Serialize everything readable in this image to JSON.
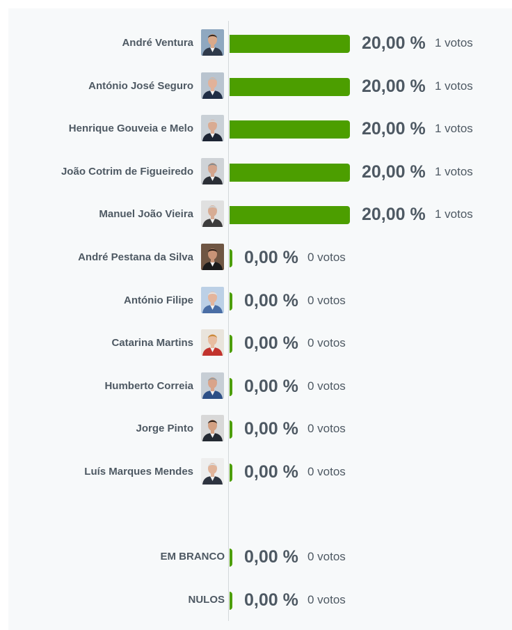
{
  "chart_data": {
    "type": "bar",
    "orientation": "horizontal",
    "vote_unit": "votos",
    "candidates": [
      {
        "name": "André Ventura",
        "percent_label": "20,00 %",
        "percent": 20.0,
        "votes": 1,
        "suit": "#2f3a4a",
        "hair": "#3a2b22",
        "skin": "#d9a98a",
        "bg": "#8fa8c0"
      },
      {
        "name": "António José Seguro",
        "percent_label": "20,00 %",
        "percent": 20.0,
        "votes": 1,
        "suit": "#1f2d45",
        "hair": "#bdbdbd",
        "skin": "#e2b29a",
        "bg": "#b9c4cf"
      },
      {
        "name": "Henrique Gouveia e Melo",
        "percent_label": "20,00 %",
        "percent": 20.0,
        "votes": 1,
        "suit": "#1c2433",
        "hair": "#d5d5d5",
        "skin": "#d9ab92",
        "bg": "#c9d0d6"
      },
      {
        "name": "João Cotrim de Figueiredo",
        "percent_label": "20,00 %",
        "percent": 20.0,
        "votes": 1,
        "suit": "#2b2f36",
        "hair": "#8b8b8b",
        "skin": "#d3a48c",
        "bg": "#cfd3d7"
      },
      {
        "name": "Manuel João Vieira",
        "percent_label": "20,00 %",
        "percent": 20.0,
        "votes": 1,
        "suit": "#3c3c3c",
        "hair": "#cfcfcf",
        "skin": "#d7ac94",
        "bg": "#e0e0e0"
      },
      {
        "name": "André Pestana da Silva",
        "percent_label": "0,00 %",
        "percent": 0.0,
        "votes": 0,
        "suit": "#1b1b1b",
        "hair": "#2a1d16",
        "skin": "#c99477",
        "bg": "#6f5643"
      },
      {
        "name": "António Filipe",
        "percent_label": "0,00 %",
        "percent": 0.0,
        "votes": 0,
        "suit": "#4a6ea5",
        "hair": "#e3e3e3",
        "skin": "#e4b59c",
        "bg": "#bcd0e6"
      },
      {
        "name": "Catarina Martins",
        "percent_label": "0,00 %",
        "percent": 0.0,
        "votes": 0,
        "suit": "#c2332d",
        "hair": "#c98a3a",
        "skin": "#e8bda0",
        "bg": "#e9e4dc"
      },
      {
        "name": "Humberto Correia",
        "percent_label": "0,00 %",
        "percent": 0.0,
        "votes": 0,
        "suit": "#2d4f86",
        "hair": "#9c9c9c",
        "skin": "#d9a48a",
        "bg": "#c7ced5"
      },
      {
        "name": "Jorge Pinto",
        "percent_label": "0,00 %",
        "percent": 0.0,
        "votes": 0,
        "suit": "#242a33",
        "hair": "#2b1e17",
        "skin": "#d3a082",
        "bg": "#d8d8d8"
      },
      {
        "name": "Luís Marques Mendes",
        "percent_label": "0,00 %",
        "percent": 0.0,
        "votes": 0,
        "suit": "#2e3440",
        "hair": "#dcdcdc",
        "skin": "#e1b49a",
        "bg": "#eeeeee"
      }
    ],
    "others": [
      {
        "name": "EM BRANCO",
        "percent_label": "0,00 %",
        "percent": 0.0,
        "votes": 0
      },
      {
        "name": "NULOS",
        "percent_label": "0,00 %",
        "percent": 0.0,
        "votes": 0
      }
    ],
    "bar_color": "#4c9e00",
    "text_color": "#4e5963",
    "xlim": [
      0,
      20
    ]
  }
}
